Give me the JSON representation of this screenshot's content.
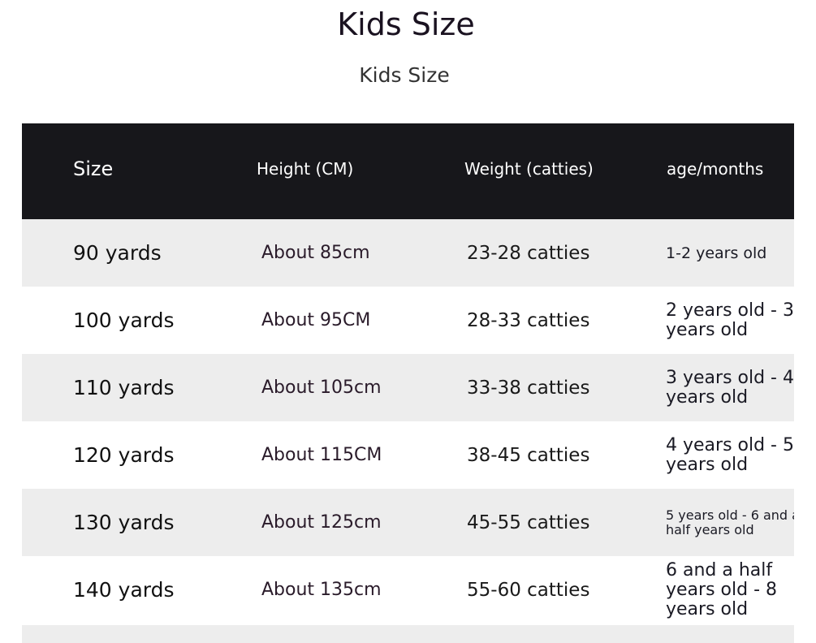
{
  "page": {
    "title": "Kids Size",
    "subtitle": "Kids Size"
  },
  "table": {
    "headers": {
      "size": "Size",
      "height": "Height (CM)",
      "weight": "Weight (catties)",
      "age": "age/months"
    },
    "rows": [
      {
        "size": "90 yards",
        "height": "About 85cm",
        "weight": "23-28 catties",
        "age": "1-2 years old"
      },
      {
        "size": "100 yards",
        "height": "About 95CM",
        "weight": "28-33 catties",
        "age": "2 years old - 3 years old"
      },
      {
        "size": "110 yards",
        "height": "About 105cm",
        "weight": "33-38 catties",
        "age": "3 years old - 4 years old"
      },
      {
        "size": "120 yards",
        "height": "About 115CM",
        "weight": "38-45 catties",
        "age": "4 years old - 5 years old"
      },
      {
        "size": "130 yards",
        "height": "About 125cm",
        "weight": "45-55 catties",
        "age": "5 years old - 6 and a half years old"
      },
      {
        "size": "140 yards",
        "height": "About 135cm",
        "weight": "55-60 catties",
        "age": "6 and a half years old - 8 years old"
      }
    ]
  },
  "colors": {
    "header_bg": "#17171b",
    "row_shade": "#ededed",
    "row_plain": "#ffffff"
  }
}
